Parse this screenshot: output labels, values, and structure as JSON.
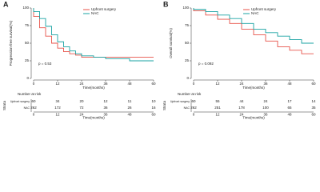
{
  "chart_data": [
    {
      "type": "line",
      "step": true,
      "panel": "A",
      "ylabel": "Progression-free survival(%)",
      "xlabel": "Time(months)",
      "annotation": "p = 0.53",
      "xlim": [
        0,
        60
      ],
      "xticks": [
        0,
        12,
        24,
        36,
        48,
        60
      ],
      "ylim": [
        0,
        100
      ],
      "yticks": [
        0,
        25,
        50,
        75,
        100
      ],
      "series": [
        {
          "name": "Upfront surgery",
          "color": "#e8534a",
          "x": [
            0,
            3,
            6,
            9,
            12,
            15,
            18,
            21,
            24,
            30,
            60
          ],
          "values": [
            100,
            88,
            72,
            60,
            50,
            43,
            38,
            35,
            33,
            30,
            30
          ]
        },
        {
          "name": "NAC",
          "color": "#1aa3a3",
          "x": [
            0,
            3,
            6,
            9,
            12,
            15,
            18,
            21,
            24,
            30,
            36,
            48,
            60
          ],
          "values": [
            100,
            95,
            85,
            74,
            62,
            52,
            45,
            39,
            35,
            32,
            30,
            28,
            25
          ]
        }
      ],
      "risk_table": {
        "title": "Number at risk",
        "strata_label": "Strata",
        "x_label": "Time(months)",
        "rows": [
          {
            "name": "Upfront surgery",
            "color": "#e8534a",
            "values": [
              60,
              34,
              20,
              12,
              11,
              10
            ]
          },
          {
            "name": "NAC",
            "color": "#1aa3a3",
            "values": [
              262,
              172,
              72,
              36,
              26,
              16
            ]
          }
        ]
      }
    },
    {
      "type": "line",
      "step": true,
      "panel": "B",
      "ylabel": "Overall survival(%)",
      "xlabel": "Time(months)",
      "annotation": "p = 0.092",
      "xlim": [
        0,
        60
      ],
      "xticks": [
        0,
        12,
        24,
        36,
        48,
        60
      ],
      "ylim": [
        0,
        100
      ],
      "yticks": [
        0,
        25,
        50,
        75,
        100
      ],
      "series": [
        {
          "name": "Upfront surgery",
          "color": "#e8534a",
          "x": [
            0,
            6,
            12,
            18,
            24,
            30,
            36,
            42,
            48,
            54,
            60
          ],
          "values": [
            100,
            96,
            90,
            84,
            78,
            70,
            62,
            53,
            45,
            40,
            35
          ]
        },
        {
          "name": "NAC",
          "color": "#1aa3a3",
          "x": [
            0,
            6,
            12,
            18,
            24,
            30,
            36,
            42,
            48,
            54,
            60
          ],
          "values": [
            100,
            98,
            95,
            90,
            85,
            78,
            70,
            65,
            60,
            55,
            50
          ]
        }
      ],
      "risk_table": {
        "title": "Number at risk",
        "strata_label": "Strata",
        "x_label": "Time(months)",
        "rows": [
          {
            "name": "Upfront surgery",
            "color": "#e8534a",
            "values": [
              60,
              55,
              44,
              24,
              17,
              14
            ]
          },
          {
            "name": "NAC",
            "color": "#1aa3a3",
            "values": [
              262,
              251,
              178,
              100,
              65,
              35
            ]
          }
        ]
      }
    }
  ]
}
